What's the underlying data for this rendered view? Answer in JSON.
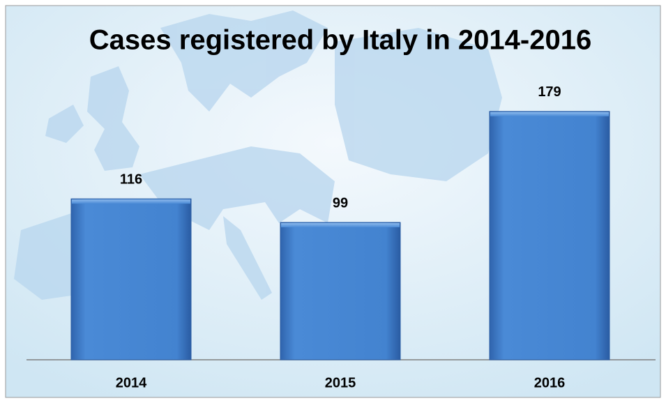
{
  "chart_data": {
    "type": "bar",
    "title": "Cases registered by Italy in 2014-2016",
    "categories": [
      "2014",
      "2015",
      "2016"
    ],
    "values": [
      116,
      99,
      179
    ],
    "color": "#3f7fd0"
  }
}
